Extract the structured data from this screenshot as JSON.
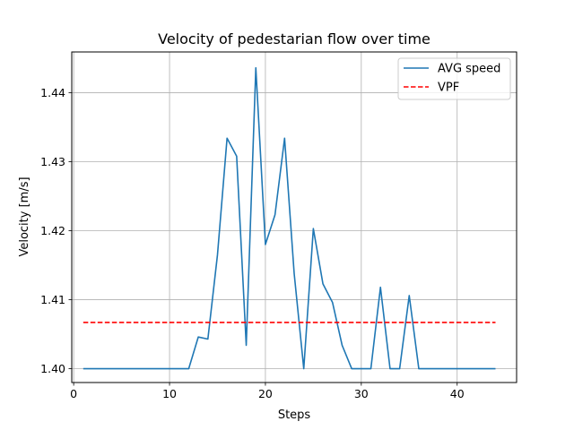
{
  "chart_data": {
    "type": "line",
    "title": "Velocity of pedestarian flow over time",
    "xlabel": "Steps",
    "ylabel": "Velocity [m/s]",
    "xlim": [
      -0.2,
      46.2
    ],
    "ylim": [
      1.398,
      1.4459
    ],
    "xticks": [
      0,
      10,
      20,
      30,
      40
    ],
    "yticks": [
      1.4,
      1.41,
      1.42,
      1.43,
      1.44
    ],
    "ytick_labels": [
      "1.40",
      "1.41",
      "1.42",
      "1.43",
      "1.44"
    ],
    "grid": true,
    "legend_position": "upper right",
    "series": [
      {
        "name": "AVG speed",
        "style": "solid",
        "color": "#1f77b4",
        "x": [
          1,
          2,
          3,
          4,
          5,
          6,
          7,
          8,
          9,
          10,
          11,
          12,
          13,
          14,
          15,
          16,
          17,
          18,
          19,
          20,
          21,
          22,
          23,
          24,
          25,
          26,
          27,
          28,
          29,
          30,
          31,
          32,
          33,
          34,
          35,
          36,
          37,
          38,
          39,
          40,
          41,
          42,
          43,
          44
        ],
        "y": [
          1.4,
          1.4,
          1.4,
          1.4,
          1.4,
          1.4,
          1.4,
          1.4,
          1.4,
          1.4,
          1.4,
          1.4,
          1.4046,
          1.4043,
          1.4165,
          1.4334,
          1.4308,
          1.4034,
          1.4436,
          1.418,
          1.4223,
          1.4334,
          1.4138,
          1.4,
          1.4203,
          1.4123,
          1.4096,
          1.4034,
          1.4,
          1.4,
          1.4,
          1.4118,
          1.4,
          1.4,
          1.4106,
          1.4,
          1.4,
          1.4,
          1.4,
          1.4,
          1.4,
          1.4,
          1.4,
          1.4
        ]
      },
      {
        "name": "VPF",
        "style": "dashed",
        "color": "#ff0000",
        "x": [
          1,
          44
        ],
        "y": [
          1.4067,
          1.4067
        ]
      }
    ]
  }
}
